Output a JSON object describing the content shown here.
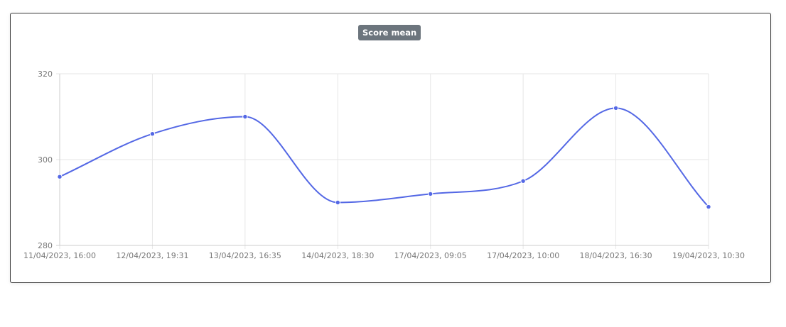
{
  "card": {
    "title": "Score mean"
  },
  "chart_data": {
    "type": "line",
    "title": "Score mean",
    "xlabel": "",
    "ylabel": "",
    "categories": [
      "11/04/2023, 16:00",
      "12/04/2023, 19:31",
      "13/04/2023, 16:35",
      "14/04/2023, 18:30",
      "17/04/2023, 09:05",
      "17/04/2023, 10:00",
      "18/04/2023, 16:30",
      "19/04/2023, 10:30"
    ],
    "series": [
      {
        "values": [
          296,
          306,
          310,
          290,
          292,
          295,
          312,
          289
        ]
      }
    ],
    "ylim": [
      280,
      320
    ],
    "yticks": [
      280,
      300,
      320
    ],
    "grid": true,
    "legend": "none",
    "colors": {
      "line": "#5468e5",
      "grid": "#e6e6e6",
      "axis": "#cccccc",
      "tick_text": "#777777",
      "title_badge_bg": "#6c757d",
      "title_badge_text": "#ffffff"
    }
  }
}
